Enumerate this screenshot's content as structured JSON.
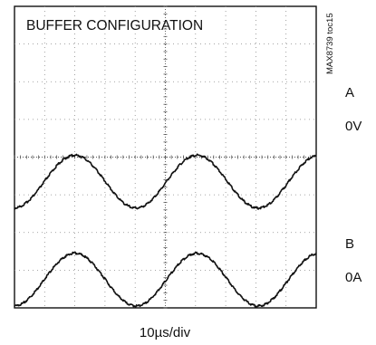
{
  "chart_data": {
    "type": "line",
    "title": "BUFFER CONFIGURATION",
    "figure_id": "MAX8739 toc15",
    "xlabel": "10µs/div",
    "grid": true,
    "divisions": {
      "x": 10,
      "y": 8
    },
    "x": {
      "unit": "div",
      "range": [
        0,
        10
      ]
    },
    "y": {
      "unit": "div",
      "range": [
        0,
        8
      ]
    },
    "series": [
      {
        "name": "A",
        "ground_label": "0V",
        "ground_div": 2.3,
        "waveform": "sine",
        "center_div": 3.35,
        "amplitude_div": 0.7,
        "period_div": 4.05,
        "first_peak_x_div": 2.0
      },
      {
        "name": "B",
        "ground_label": "0A",
        "ground_div": -0.7,
        "waveform": "sine",
        "center_div": 0.75,
        "amplitude_div": 0.7,
        "period_div": 4.05,
        "first_peak_x_div": 2.0
      }
    ],
    "colors": {
      "trace": "#111111",
      "grid": "#8a8a8a",
      "frame": "#111111"
    }
  }
}
